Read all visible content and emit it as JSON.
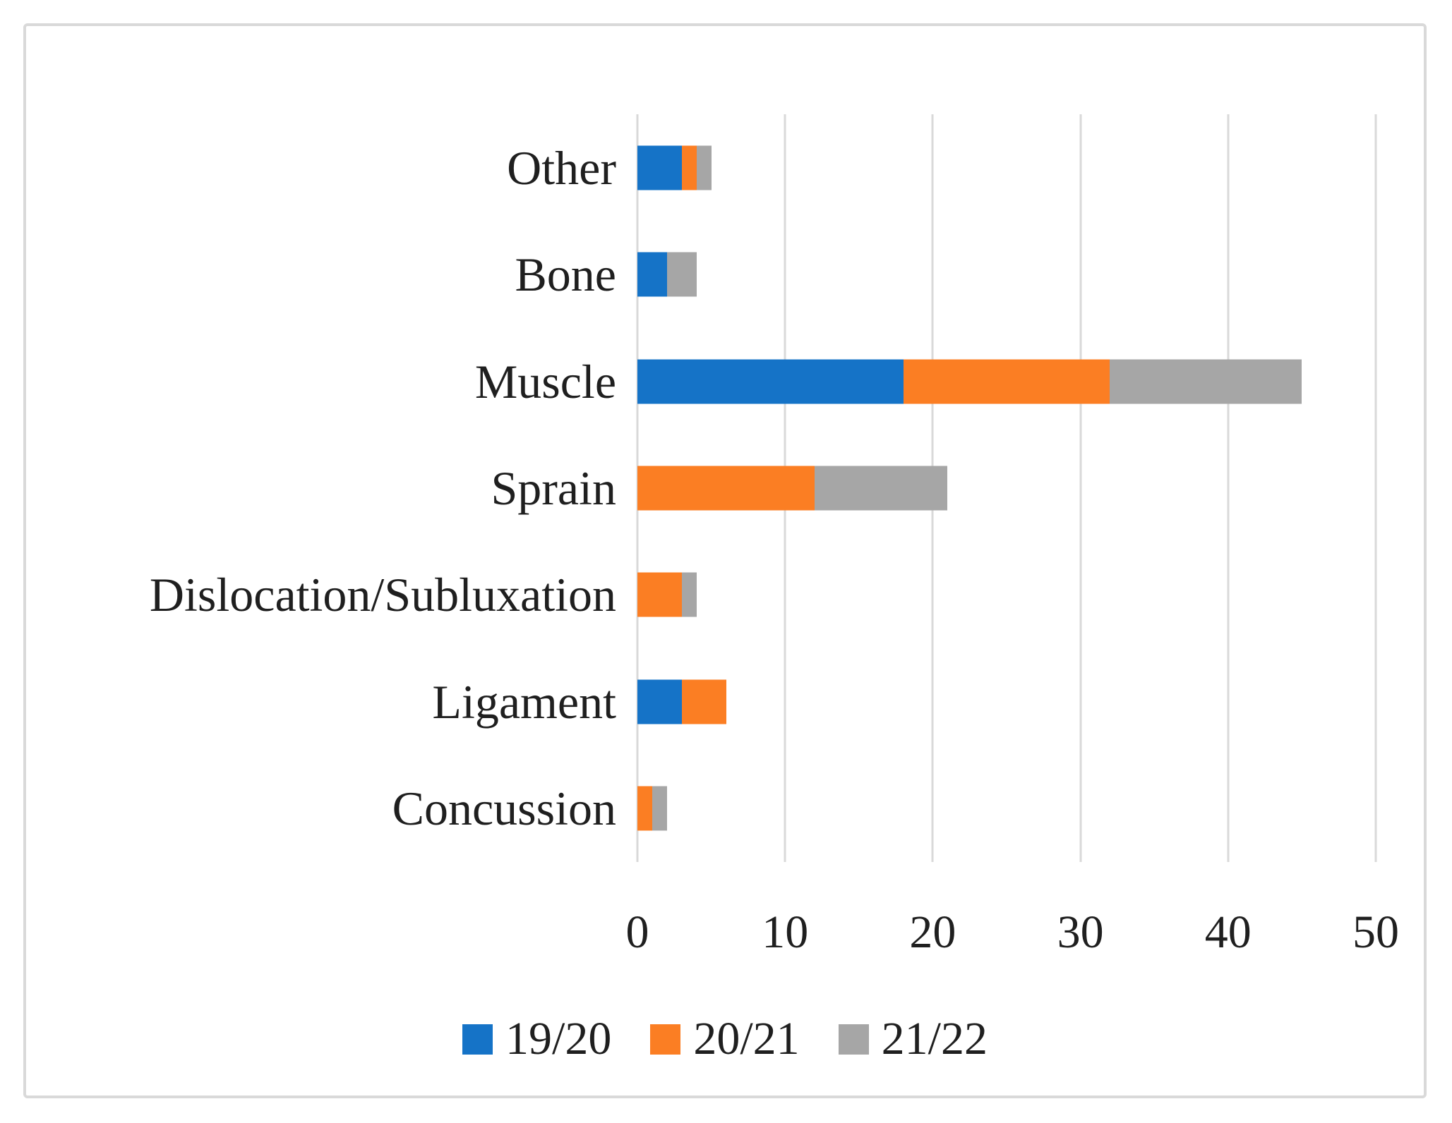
{
  "figure": {
    "background": "#ffffff",
    "border_color": "#d9d9d9",
    "text_color": "#1f1f1f"
  },
  "chart_data": {
    "type": "bar",
    "orientation": "horizontal",
    "stacked": true,
    "title": "",
    "xlabel": "",
    "ylabel": "",
    "categories": [
      "Other",
      "Bone",
      "Muscle",
      "Sprain",
      "Dislocation/Subluxation",
      "Ligament",
      "Concussion"
    ],
    "series": [
      {
        "name": "19/20",
        "color": "#1573c7",
        "values": [
          3,
          2,
          18,
          0,
          0,
          3,
          0
        ]
      },
      {
        "name": "20/21",
        "color": "#fb7e23",
        "values": [
          1,
          0,
          14,
          12,
          3,
          3,
          1
        ]
      },
      {
        "name": "21/22",
        "color": "#a6a6a6",
        "values": [
          1,
          2,
          13,
          9,
          1,
          0,
          1
        ]
      }
    ],
    "totals_by_category": [
      5,
      4,
      45,
      21,
      4,
      6,
      2
    ],
    "x_ticks": [
      "0",
      "10",
      "20",
      "30",
      "40",
      "50"
    ],
    "xlim": [
      0,
      50
    ],
    "grid": "vertical",
    "gridline_color": "#d9d9d9",
    "legend_position": "bottom-center"
  }
}
